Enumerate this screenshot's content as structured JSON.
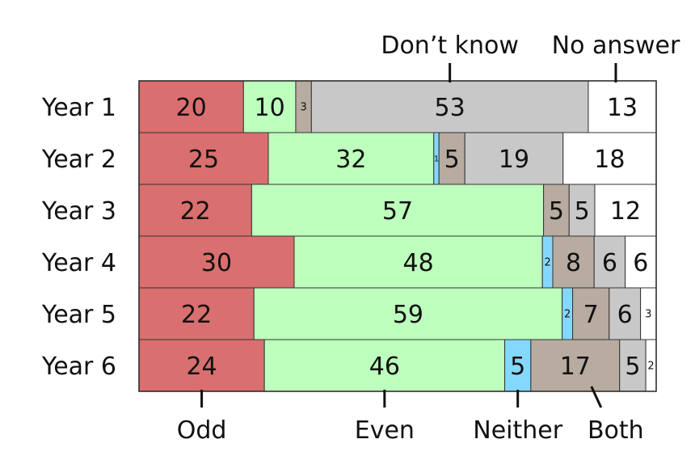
{
  "chart_data": {
    "type": "bar",
    "orientation": "horizontal",
    "stacked": true,
    "categories": [
      "Year 1",
      "Year 2",
      "Year 3",
      "Year 4",
      "Year 5",
      "Year 6"
    ],
    "series": [
      {
        "name": "Odd",
        "color": "#d96f6f",
        "values": [
          20,
          25,
          22,
          30,
          22,
          24
        ]
      },
      {
        "name": "Even",
        "color": "#bdffbc",
        "values": [
          10,
          32,
          57,
          48,
          59,
          46
        ]
      },
      {
        "name": "Neither",
        "color": "#84d8ff",
        "values": [
          0,
          1,
          0,
          2,
          2,
          5
        ]
      },
      {
        "name": "Both",
        "color": "#b8ab9f",
        "values": [
          3,
          5,
          5,
          8,
          7,
          17
        ]
      },
      {
        "name": "Don’t know",
        "color": "#c8c8c8",
        "values": [
          53,
          19,
          5,
          6,
          6,
          5
        ]
      },
      {
        "name": "No answer",
        "color": "#ffffff",
        "values": [
          13,
          18,
          12,
          6,
          3,
          2
        ]
      }
    ],
    "legend": {
      "top": [
        "Don’t know",
        "No answer"
      ],
      "bottom": [
        "Odd",
        "Even",
        "Neither",
        "Both"
      ]
    },
    "grid": false
  }
}
